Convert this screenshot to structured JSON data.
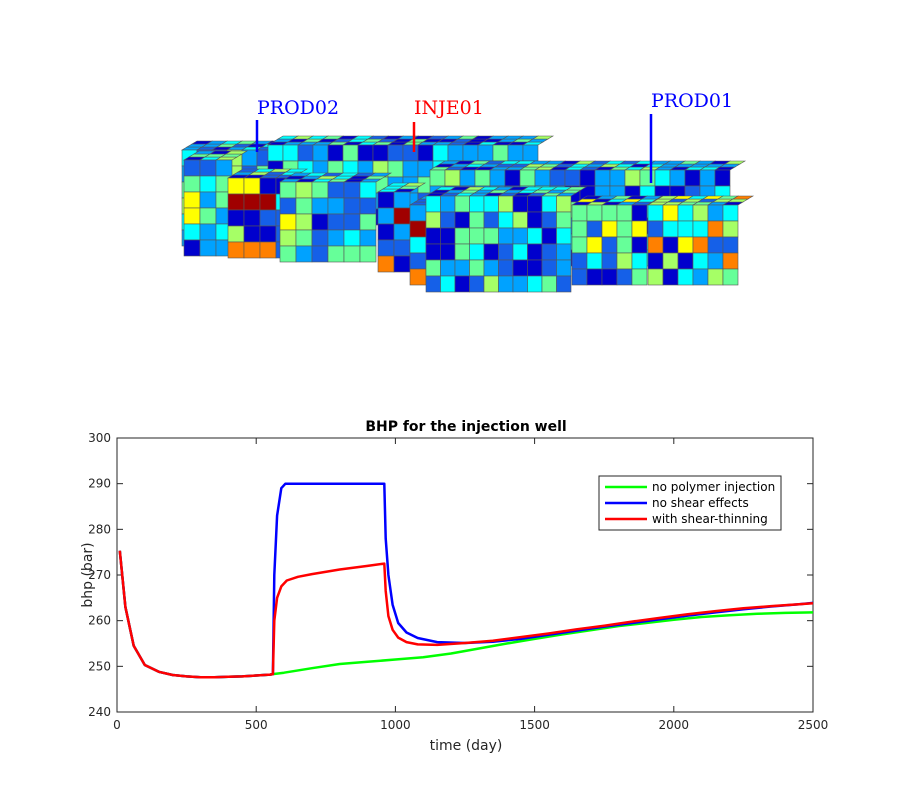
{
  "reservor_view": {
    "wells": [
      {
        "name": "PROD02",
        "color": "#0000ff"
      },
      {
        "name": "INJE01",
        "color": "#ff0000"
      },
      {
        "name": "PROD01",
        "color": "#0000ff"
      }
    ],
    "colormap": [
      "#0000cd",
      "#1560e8",
      "#00a2ff",
      "#00ffff",
      "#66ff99",
      "#a6ff66",
      "#ffff00",
      "#ff8000",
      "#a00000"
    ]
  },
  "chart_data": {
    "type": "line",
    "title": "BHP for the injection well",
    "xlabel": "time (day)",
    "ylabel": "bhp (bar)",
    "xlim": [
      0,
      2500
    ],
    "ylim": [
      240,
      300
    ],
    "xticks": [
      0,
      500,
      1000,
      1500,
      2000,
      2500
    ],
    "yticks": [
      240,
      250,
      260,
      270,
      280,
      290,
      300
    ],
    "legend_position": "top-right",
    "series": [
      {
        "name": "no polymer injection",
        "color": "#00ff00",
        "x": [
          10,
          30,
          60,
          100,
          150,
          200,
          250,
          300,
          350,
          400,
          450,
          500,
          550,
          560,
          600,
          700,
          800,
          900,
          1000,
          1100,
          1200,
          1300,
          1400,
          1500,
          1600,
          1700,
          1800,
          1900,
          2000,
          2100,
          2200,
          2300,
          2400,
          2500
        ],
        "y": [
          275.3,
          263.0,
          254.5,
          250.3,
          248.8,
          248.1,
          247.8,
          247.6,
          247.6,
          247.7,
          247.8,
          248.0,
          248.2,
          248.3,
          248.6,
          249.6,
          250.5,
          251.0,
          251.5,
          252.0,
          252.8,
          253.9,
          255.0,
          256.0,
          257.0,
          257.9,
          258.8,
          259.5,
          260.2,
          260.8,
          261.2,
          261.5,
          261.7,
          261.8
        ]
      },
      {
        "name": "no shear effects",
        "color": "#0000ff",
        "x": [
          10,
          30,
          60,
          100,
          150,
          200,
          250,
          300,
          350,
          400,
          450,
          500,
          550,
          560,
          565,
          575,
          590,
          605,
          700,
          800,
          900,
          960,
          965,
          975,
          990,
          1010,
          1040,
          1080,
          1150,
          1250,
          1350,
          1450,
          1550,
          1650,
          1750,
          1850,
          1950,
          2050,
          2150,
          2250,
          2350,
          2450,
          2500
        ],
        "y": [
          275.3,
          263.0,
          254.5,
          250.3,
          248.8,
          248.1,
          247.8,
          247.6,
          247.6,
          247.7,
          247.8,
          248.0,
          248.2,
          248.3,
          270.0,
          283.0,
          289.0,
          290.0,
          290.0,
          290.0,
          290.0,
          290.0,
          278.0,
          270.0,
          263.5,
          259.5,
          257.4,
          256.2,
          255.3,
          255.1,
          255.4,
          256.0,
          256.9,
          257.8,
          258.7,
          259.5,
          260.3,
          261.1,
          261.8,
          262.5,
          263.1,
          263.6,
          263.9
        ]
      },
      {
        "name": "with shear-thinning",
        "color": "#ff0000",
        "x": [
          10,
          30,
          60,
          100,
          150,
          200,
          250,
          300,
          350,
          400,
          450,
          500,
          550,
          560,
          565,
          575,
          590,
          610,
          650,
          700,
          800,
          900,
          960,
          965,
          975,
          990,
          1010,
          1040,
          1080,
          1150,
          1250,
          1350,
          1450,
          1550,
          1650,
          1750,
          1850,
          1950,
          2050,
          2150,
          2250,
          2350,
          2450,
          2500
        ],
        "y": [
          275.3,
          263.0,
          254.5,
          250.3,
          248.8,
          248.1,
          247.8,
          247.6,
          247.6,
          247.7,
          247.8,
          248.0,
          248.2,
          248.3,
          260.0,
          265.0,
          267.5,
          268.8,
          269.6,
          270.2,
          271.2,
          272.0,
          272.5,
          266.5,
          261.0,
          258.0,
          256.3,
          255.3,
          254.8,
          254.7,
          255.1,
          255.6,
          256.4,
          257.2,
          258.1,
          258.9,
          259.8,
          260.6,
          261.4,
          262.1,
          262.7,
          263.2,
          263.6,
          263.8
        ]
      }
    ]
  }
}
